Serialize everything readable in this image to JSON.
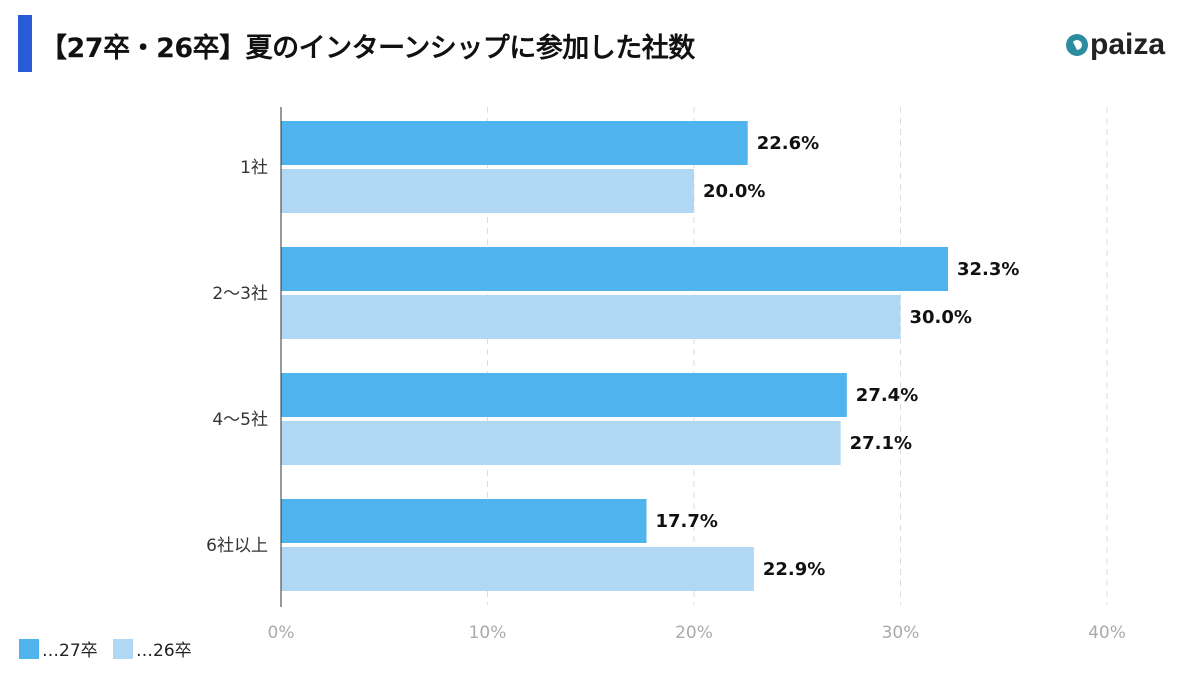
{
  "title": "【27卒・26卒】夏のインターンシップに参加した社数",
  "logo": "paiza",
  "colors": {
    "title_bar": "#2a5bd7",
    "series_27": "#4fb3ee",
    "series_26": "#b0d8f5",
    "logo": "#2e8ca0"
  },
  "chart_data": {
    "type": "bar",
    "orientation": "horizontal",
    "categories": [
      "1社",
      "2〜3社",
      "4〜5社",
      "6社以上"
    ],
    "series": [
      {
        "name": "…27卒",
        "values": [
          22.6,
          32.3,
          27.4,
          17.7
        ],
        "labels": [
          "22.6%",
          "32.3%",
          "27.4%",
          "17.7%"
        ]
      },
      {
        "name": "…26卒",
        "values": [
          20.0,
          30.0,
          27.1,
          22.9
        ],
        "labels": [
          "20.0%",
          "30.0%",
          "27.1%",
          "22.9%"
        ]
      }
    ],
    "xlim": [
      0,
      40
    ],
    "xticks": [
      "0%",
      "10%",
      "20%",
      "30%",
      "40%"
    ],
    "grid": true,
    "legend": "bottom-left"
  }
}
